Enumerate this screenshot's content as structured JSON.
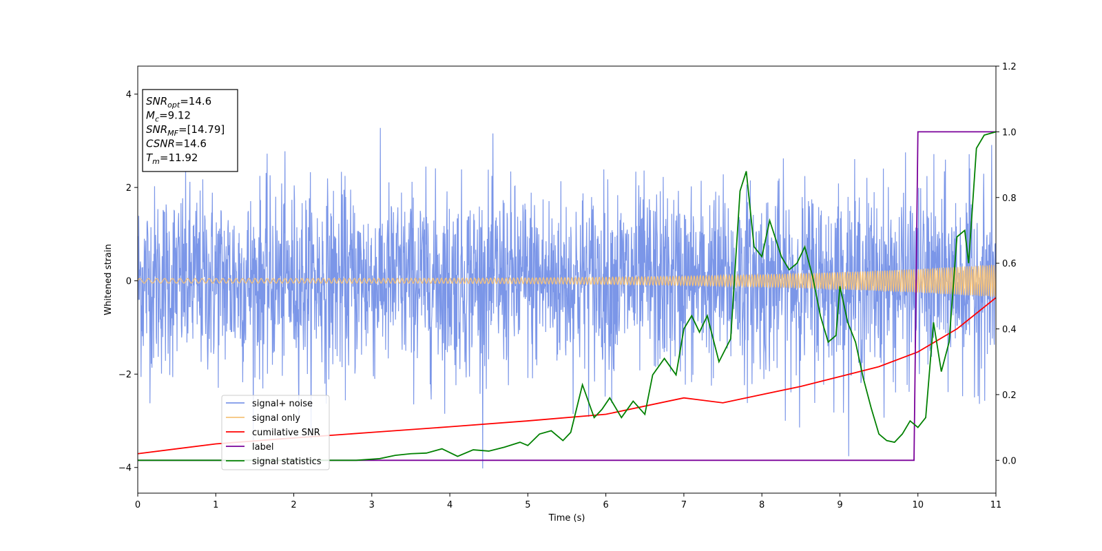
{
  "chart_data": {
    "type": "line",
    "xlabel": "Time (s)",
    "ylabel": "Whitened strain",
    "xlim": [
      0,
      11
    ],
    "ylim_left": [
      -4.55,
      4.6
    ],
    "ylim_right": [
      -0.1,
      1.2
    ],
    "x_ticks": [
      "0",
      "1",
      "2",
      "3",
      "4",
      "5",
      "6",
      "7",
      "8",
      "9",
      "10",
      "11"
    ],
    "y_ticks_left": [
      "−4",
      "−2",
      "0",
      "2",
      "4"
    ],
    "y_ticks_right": [
      "0.0",
      "0.2",
      "0.4",
      "0.6",
      "0.8",
      "1.0",
      "1.2"
    ],
    "grid": false,
    "legend_position": "lower-left",
    "annotation": {
      "lines": [
        {
          "sym": "SNR",
          "sub": "opt",
          "val": "=14.6"
        },
        {
          "sym": "M",
          "sub": "c",
          "val": "=9.12"
        },
        {
          "sym": "SNR",
          "sub": "MF",
          "val": "=[14.79]"
        },
        {
          "sym": "CSNR",
          "sub": "",
          "val": "=14.6"
        },
        {
          "sym": "T",
          "sub": "m",
          "val": "=11.92"
        }
      ]
    },
    "series": [
      {
        "name": "signal+ noise",
        "color": "#7b96e8",
        "axis": "left",
        "style": "noise",
        "sigma": 1.0,
        "range": [
          -4.1,
          4.15
        ]
      },
      {
        "name": "signal only",
        "color": "#f5c27a",
        "axis": "left",
        "style": "chirp",
        "amplitude_start": 0.05,
        "amplitude_end": 0.35
      },
      {
        "name": "cumilative SNR",
        "color": "#ff0000",
        "axis": "right",
        "points": [
          [
            0,
            0.02
          ],
          [
            1,
            0.05
          ],
          [
            2,
            0.068
          ],
          [
            3,
            0.085
          ],
          [
            4,
            0.102
          ],
          [
            5,
            0.12
          ],
          [
            6,
            0.14
          ],
          [
            7,
            0.19
          ],
          [
            7.5,
            0.175
          ],
          [
            8,
            0.2
          ],
          [
            8.5,
            0.225
          ],
          [
            9,
            0.255
          ],
          [
            9.5,
            0.285
          ],
          [
            10,
            0.33
          ],
          [
            10.5,
            0.4
          ],
          [
            11,
            0.495
          ]
        ]
      },
      {
        "name": "label",
        "color": "#7a0099",
        "axis": "right",
        "points": [
          [
            0,
            0
          ],
          [
            9.95,
            0
          ],
          [
            10,
            1
          ],
          [
            11,
            1
          ]
        ]
      },
      {
        "name": "signal statistics",
        "color": "#008000",
        "axis": "right",
        "points": [
          [
            0,
            0
          ],
          [
            2.8,
            0
          ],
          [
            3.1,
            0.005
          ],
          [
            3.3,
            0.015
          ],
          [
            3.5,
            0.02
          ],
          [
            3.7,
            0.022
          ],
          [
            3.9,
            0.035
          ],
          [
            4.1,
            0.012
          ],
          [
            4.3,
            0.032
          ],
          [
            4.5,
            0.028
          ],
          [
            4.7,
            0.04
          ],
          [
            4.9,
            0.055
          ],
          [
            5.0,
            0.045
          ],
          [
            5.15,
            0.08
          ],
          [
            5.3,
            0.09
          ],
          [
            5.45,
            0.06
          ],
          [
            5.55,
            0.085
          ],
          [
            5.7,
            0.23
          ],
          [
            5.85,
            0.13
          ],
          [
            5.95,
            0.155
          ],
          [
            6.05,
            0.19
          ],
          [
            6.2,
            0.13
          ],
          [
            6.35,
            0.18
          ],
          [
            6.5,
            0.14
          ],
          [
            6.6,
            0.26
          ],
          [
            6.75,
            0.31
          ],
          [
            6.9,
            0.26
          ],
          [
            7.0,
            0.4
          ],
          [
            7.1,
            0.44
          ],
          [
            7.2,
            0.39
          ],
          [
            7.3,
            0.44
          ],
          [
            7.45,
            0.3
          ],
          [
            7.6,
            0.37
          ],
          [
            7.72,
            0.82
          ],
          [
            7.8,
            0.88
          ],
          [
            7.9,
            0.65
          ],
          [
            8.0,
            0.62
          ],
          [
            8.1,
            0.73
          ],
          [
            8.25,
            0.62
          ],
          [
            8.35,
            0.58
          ],
          [
            8.45,
            0.6
          ],
          [
            8.55,
            0.65
          ],
          [
            8.65,
            0.56
          ],
          [
            8.75,
            0.44
          ],
          [
            8.85,
            0.36
          ],
          [
            8.95,
            0.38
          ],
          [
            9.0,
            0.53
          ],
          [
            9.1,
            0.42
          ],
          [
            9.2,
            0.36
          ],
          [
            9.3,
            0.25
          ],
          [
            9.4,
            0.16
          ],
          [
            9.5,
            0.08
          ],
          [
            9.6,
            0.06
          ],
          [
            9.7,
            0.055
          ],
          [
            9.8,
            0.08
          ],
          [
            9.9,
            0.12
          ],
          [
            10.0,
            0.1
          ],
          [
            10.1,
            0.13
          ],
          [
            10.2,
            0.42
          ],
          [
            10.3,
            0.27
          ],
          [
            10.4,
            0.36
          ],
          [
            10.5,
            0.68
          ],
          [
            10.6,
            0.7
          ],
          [
            10.65,
            0.6
          ],
          [
            10.75,
            0.95
          ],
          [
            10.85,
            0.99
          ],
          [
            11,
            1.0
          ]
        ]
      }
    ]
  }
}
